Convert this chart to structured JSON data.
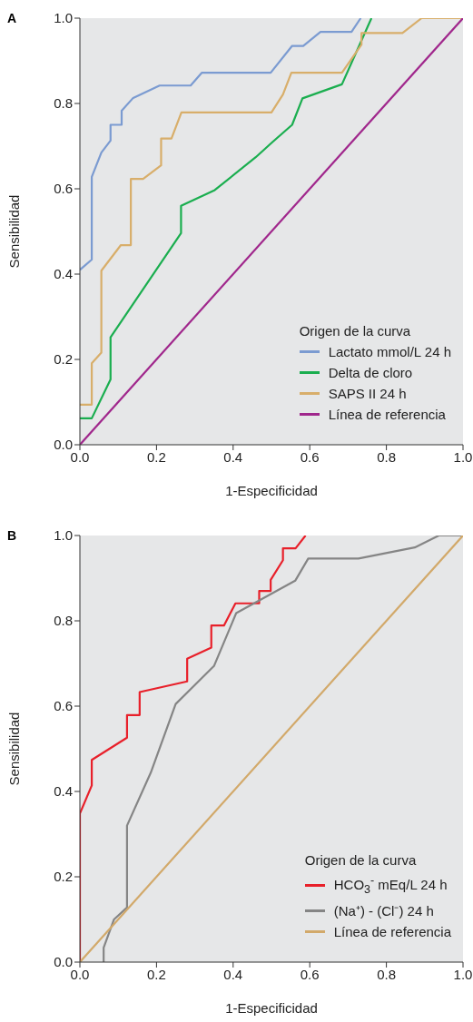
{
  "chart_data": [
    {
      "type": "line",
      "title": "A",
      "xlabel": "1-Especificidad",
      "ylabel": "Sensibilidad",
      "legend_title": "Origen de la curva",
      "legend": "bottom right",
      "marker": "none",
      "grid": false,
      "xlim": [
        0,
        1
      ],
      "ylim": [
        0,
        1
      ],
      "xticks": [
        {
          "value": 0,
          "label": "0.0"
        },
        {
          "value": 0.2,
          "label": "0.2"
        },
        {
          "value": 0.4,
          "label": "0.4"
        },
        {
          "value": 0.6,
          "label": "0.6"
        },
        {
          "value": 0.8,
          "label": "0.8"
        },
        {
          "value": 1,
          "label": "1.0"
        }
      ],
      "yticks": [
        {
          "value": 0,
          "label": "0.0"
        },
        {
          "value": 0.2,
          "label": "0.2"
        },
        {
          "value": 0.4,
          "label": "0.4"
        },
        {
          "value": 0.6,
          "label": "0.6"
        },
        {
          "value": 0.8,
          "label": "0.8"
        },
        {
          "value": 1,
          "label": "1.0"
        }
      ],
      "series": [
        {
          "name": "Lactato mmol/L 24 h",
          "color": "#7b9bd1",
          "x": [
            0,
            0.031,
            0.031,
            0.056,
            0.08,
            0.08,
            0.109,
            0.109,
            0.139,
            0.208,
            0.289,
            0.318,
            0.498,
            0.554,
            0.583,
            0.628,
            0.709,
            0.733
          ],
          "values": [
            0.41,
            0.434,
            0.628,
            0.685,
            0.713,
            0.75,
            0.75,
            0.783,
            0.813,
            0.842,
            0.842,
            0.872,
            0.872,
            0.935,
            0.935,
            0.968,
            0.968,
            1
          ]
        },
        {
          "name": "Delta de cloro",
          "color": "#1aae4f",
          "x": [
            0,
            0.031,
            0.08,
            0.08,
            0.264,
            0.264,
            0.352,
            0.459,
            0.502,
            0.554,
            0.581,
            0.684,
            0.761
          ],
          "values": [
            0.062,
            0.062,
            0.153,
            0.252,
            0.496,
            0.56,
            0.597,
            0.674,
            0.709,
            0.75,
            0.812,
            0.845,
            1
          ]
        },
        {
          "name": "SAPS II 24 h",
          "color": "#d8ae6a",
          "x": [
            0,
            0.031,
            0.031,
            0.056,
            0.056,
            0.107,
            0.133,
            0.133,
            0.165,
            0.212,
            0.212,
            0.239,
            0.265,
            0.5,
            0.53,
            0.552,
            0.684,
            0.735,
            0.735,
            0.842,
            0.892,
            1
          ],
          "values": [
            0.094,
            0.094,
            0.191,
            0.216,
            0.408,
            0.468,
            0.468,
            0.623,
            0.623,
            0.655,
            0.718,
            0.718,
            0.779,
            0.779,
            0.821,
            0.872,
            0.872,
            0.938,
            0.965,
            0.965,
            1,
            1
          ]
        },
        {
          "name": "Línea de referencia",
          "color": "#a0278c",
          "x": [
            0,
            1
          ],
          "values": [
            0,
            1
          ]
        }
      ]
    },
    {
      "type": "line",
      "title": "B",
      "xlabel": "1-Especificidad",
      "ylabel": "Sensibilidad",
      "legend_title": "Origen de la curva",
      "legend": "bottom right",
      "marker": "none",
      "grid": false,
      "xlim": [
        0,
        1
      ],
      "ylim": [
        0,
        1
      ],
      "xticks": [
        {
          "value": 0,
          "label": "0.0"
        },
        {
          "value": 0.2,
          "label": "0.2"
        },
        {
          "value": 0.4,
          "label": "0.4"
        },
        {
          "value": 0.6,
          "label": "0.6"
        },
        {
          "value": 0.8,
          "label": "0.8"
        },
        {
          "value": 1,
          "label": "1.0"
        }
      ],
      "yticks": [
        {
          "value": 0,
          "label": "0.0"
        },
        {
          "value": 0.2,
          "label": "0.2"
        },
        {
          "value": 0.4,
          "label": "0.4"
        },
        {
          "value": 0.6,
          "label": "0.6"
        },
        {
          "value": 0.8,
          "label": "0.8"
        },
        {
          "value": 1,
          "label": "1.0"
        }
      ],
      "series": [
        {
          "name": "HCO$_{3}$$^{-}$ mEq/L 24 h",
          "color": "#e8202a",
          "x": [
            0,
            0,
            0.031,
            0.031,
            0.123,
            0.123,
            0.156,
            0.156,
            0.28,
            0.28,
            0.343,
            0.343,
            0.376,
            0.406,
            0.468,
            0.468,
            0.498,
            0.498,
            0.53,
            0.53,
            0.563,
            0.589
          ],
          "values": [
            0,
            0.348,
            0.414,
            0.474,
            0.526,
            0.579,
            0.579,
            0.633,
            0.658,
            0.711,
            0.737,
            0.789,
            0.789,
            0.841,
            0.841,
            0.87,
            0.87,
            0.896,
            0.942,
            0.97,
            0.97,
            1
          ]
        },
        {
          "name": "(Na⁺) - (Cl⁻) 24 h",
          "color": "#858585",
          "x": [
            0.062,
            0.062,
            0.089,
            0.123,
            0.123,
            0.185,
            0.25,
            0.35,
            0.408,
            0.562,
            0.596,
            0.727,
            0.874,
            0.937,
            1
          ],
          "values": [
            0,
            0.034,
            0.1,
            0.128,
            0.32,
            0.444,
            0.605,
            0.694,
            0.818,
            0.894,
            0.946,
            0.946,
            0.972,
            1,
            1
          ]
        },
        {
          "name": "Línea de referencia",
          "color": "#d2a96a",
          "x": [
            0,
            1
          ],
          "values": [
            0,
            1
          ]
        }
      ]
    }
  ]
}
